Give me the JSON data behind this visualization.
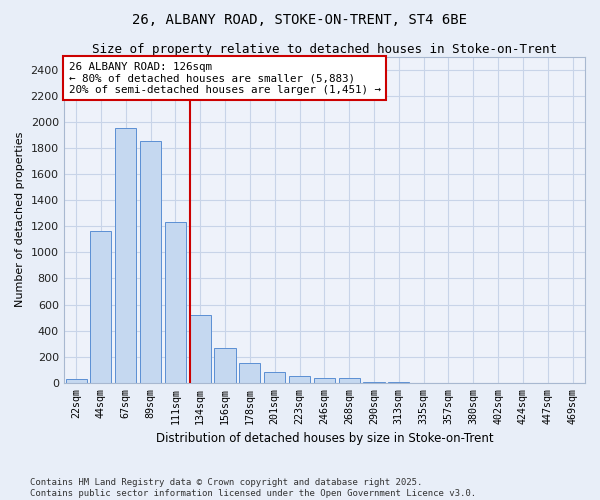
{
  "title_line1": "26, ALBANY ROAD, STOKE-ON-TRENT, ST4 6BE",
  "title_line2": "Size of property relative to detached houses in Stoke-on-Trent",
  "xlabel": "Distribution of detached houses by size in Stoke-on-Trent",
  "ylabel": "Number of detached properties",
  "categories": [
    "22sqm",
    "44sqm",
    "67sqm",
    "89sqm",
    "111sqm",
    "134sqm",
    "156sqm",
    "178sqm",
    "201sqm",
    "223sqm",
    "246sqm",
    "268sqm",
    "290sqm",
    "313sqm",
    "335sqm",
    "357sqm",
    "380sqm",
    "402sqm",
    "424sqm",
    "447sqm",
    "469sqm"
  ],
  "values": [
    30,
    1160,
    1950,
    1850,
    1230,
    520,
    270,
    150,
    80,
    50,
    35,
    35,
    10,
    5,
    2,
    1,
    1,
    0,
    0,
    0,
    0
  ],
  "bar_color": "#c5d8f0",
  "bar_edge_color": "#5b8fd4",
  "annotation_text": "26 ALBANY ROAD: 126sqm\n← 80% of detached houses are smaller (5,883)\n20% of semi-detached houses are larger (1,451) →",
  "annotation_box_color": "#ffffff",
  "annotation_box_edge_color": "#cc0000",
  "vline_color": "#cc0000",
  "vline_x_index": 4.6,
  "ylim": [
    0,
    2500
  ],
  "yticks": [
    0,
    200,
    400,
    600,
    800,
    1000,
    1200,
    1400,
    1600,
    1800,
    2000,
    2200,
    2400
  ],
  "grid_color": "#c8d4e8",
  "bg_color": "#e8eef8",
  "plot_bg_color": "#eef2fa",
  "footer_line1": "Contains HM Land Registry data © Crown copyright and database right 2025.",
  "footer_line2": "Contains public sector information licensed under the Open Government Licence v3.0."
}
